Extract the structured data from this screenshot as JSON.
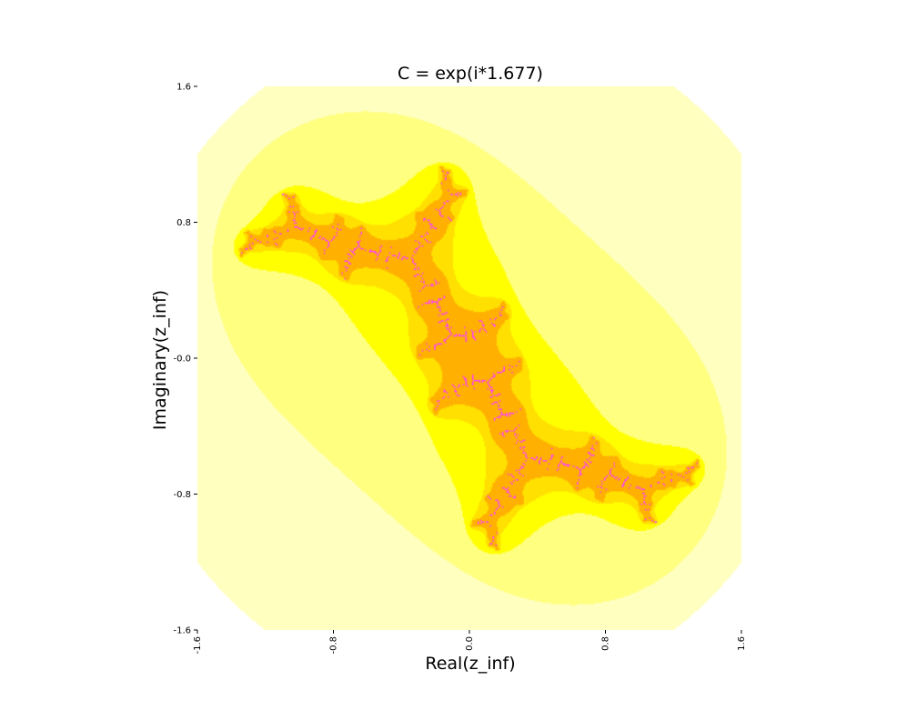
{
  "chart_data": {
    "type": "heatmap",
    "title": "C = exp(i*1.677)",
    "xlabel": "Real(z_inf)",
    "ylabel": "Imaginary(z_inf)",
    "xlim": [
      -1.6,
      1.6
    ],
    "ylim": [
      -1.6,
      1.6
    ],
    "xticks": [
      "-1.6",
      "-0.8",
      "0.0",
      "0.8",
      "1.6"
    ],
    "yticks": [
      "1.6",
      "0.8",
      "-0.0",
      "-0.8",
      "-1.6"
    ],
    "c_angle": 1.677,
    "grid": false,
    "colors": {
      "outer": "#ffffc0",
      "band_light": "#ffff80",
      "band_mid": "#ffff00",
      "band_deep": "#ffe000",
      "band_orange": "#ffb000",
      "set": "#ff40ff",
      "core": "#8000ff"
    }
  }
}
